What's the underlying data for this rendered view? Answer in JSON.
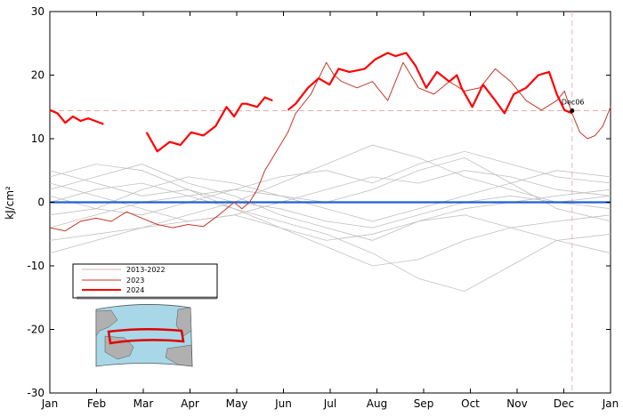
{
  "chart_data": {
    "type": "line",
    "title": "",
    "xlabel": "",
    "ylabel": "kJ/cm²",
    "ylim": [
      -30,
      30
    ],
    "yticks": [
      -30,
      -20,
      -10,
      0,
      10,
      20,
      30
    ],
    "xticks": [
      "Jan",
      "Feb",
      "Mar",
      "Apr",
      "May",
      "Jun",
      "Jul",
      "Aug",
      "Sep",
      "Oct",
      "Nov",
      "Dec",
      "Jan"
    ],
    "zero_line_color": "#1f5fd0",
    "reference_line_value": 14.4,
    "marker": {
      "label": "Dec06",
      "day": 340,
      "value": 14.4
    },
    "legend": {
      "placement": "lower-left",
      "entries": [
        "2013-2022",
        "2023",
        "2024"
      ]
    },
    "inset_map": "north-atlantic-main-development-region-map",
    "series": [
      {
        "name": "2024",
        "color": "#ff0000",
        "x": [
          0,
          5,
          10,
          15,
          20,
          25,
          35,
          null,
          63,
          70,
          78,
          85,
          92,
          100,
          108,
          115,
          120,
          125,
          128,
          135,
          140,
          145,
          null,
          155,
          160,
          168,
          175,
          182,
          188,
          195,
          205,
          212,
          220,
          225,
          232,
          238,
          245,
          252,
          260,
          265,
          268,
          275,
          282,
          290,
          296,
          302,
          310,
          318,
          325,
          330,
          335,
          340
        ],
        "y": [
          14.5,
          14,
          12.5,
          13.5,
          12.8,
          13.2,
          12.3,
          null,
          11,
          8,
          9.5,
          9,
          11,
          10.5,
          12,
          15,
          13.5,
          15.5,
          15.5,
          15,
          16.5,
          16,
          null,
          14.5,
          15.5,
          18,
          19.5,
          18.5,
          21,
          20.5,
          21,
          22.5,
          23.5,
          23,
          23.5,
          21.5,
          18,
          20.5,
          19,
          20,
          18,
          15,
          18.5,
          16,
          14,
          17,
          18,
          20,
          20.5,
          17,
          14.5,
          14
        ]
      },
      {
        "name": "2023",
        "color": "#c0392b",
        "x": [
          0,
          10,
          20,
          30,
          40,
          50,
          60,
          70,
          80,
          90,
          100,
          110,
          120,
          125,
          130,
          135,
          140,
          145,
          150,
          155,
          160,
          170,
          180,
          185,
          190,
          200,
          210,
          220,
          230,
          240,
          250,
          260,
          270,
          280,
          290,
          300,
          310,
          320,
          330,
          335,
          340,
          345,
          350,
          355,
          360,
          365
        ],
        "y": [
          -4,
          -4.5,
          -3,
          -2.5,
          -3,
          -1.5,
          -2.5,
          -3.5,
          -4,
          -3.5,
          -3.8,
          -2,
          0,
          -1,
          0,
          2,
          5,
          7,
          9,
          11,
          14,
          17,
          22,
          20,
          19,
          18,
          19,
          16,
          22,
          18,
          17,
          19,
          17.5,
          18,
          21,
          19,
          16,
          14.5,
          16,
          17.5,
          14,
          11,
          10,
          10.5,
          12,
          15
        ]
      }
    ],
    "background_years": {
      "label": "2013-2022",
      "color": "#c0c0c0",
      "days": [
        0,
        30,
        60,
        90,
        120,
        150,
        180,
        210,
        240,
        270,
        300,
        330,
        365
      ],
      "lines": [
        [
          5,
          3,
          1,
          2,
          0,
          -1,
          -3,
          -4,
          -2,
          0,
          1,
          0,
          -1
        ],
        [
          -6,
          -5,
          -4,
          -3,
          -2,
          0,
          2,
          4,
          3,
          5,
          4,
          2,
          1
        ],
        [
          2,
          4,
          6,
          3,
          1,
          -2,
          -4,
          -6,
          -3,
          -1,
          0,
          1,
          2
        ],
        [
          -2,
          -1,
          2,
          4,
          3,
          1,
          0,
          2,
          5,
          7,
          3,
          -1,
          -3
        ],
        [
          3,
          1,
          -1,
          -3,
          -2,
          -4,
          -7,
          -10,
          -9,
          -6,
          -4,
          -3,
          -2
        ],
        [
          0,
          2,
          3,
          1,
          -1,
          -3,
          -5,
          -8,
          -12,
          -14,
          -10,
          -6,
          -5
        ],
        [
          -8,
          -6,
          -4,
          -2,
          0,
          3,
          6,
          9,
          7,
          4,
          2,
          0,
          1
        ],
        [
          4,
          6,
          5,
          2,
          -1,
          -4,
          -6,
          -5,
          -3,
          -2,
          -4,
          -6,
          -8
        ],
        [
          1,
          -1,
          -2,
          0,
          2,
          4,
          5,
          3,
          6,
          8,
          6,
          4,
          3
        ],
        [
          -4,
          -2,
          0,
          1,
          2,
          1,
          -1,
          -3,
          -1,
          1,
          3,
          5,
          4
        ]
      ]
    }
  }
}
